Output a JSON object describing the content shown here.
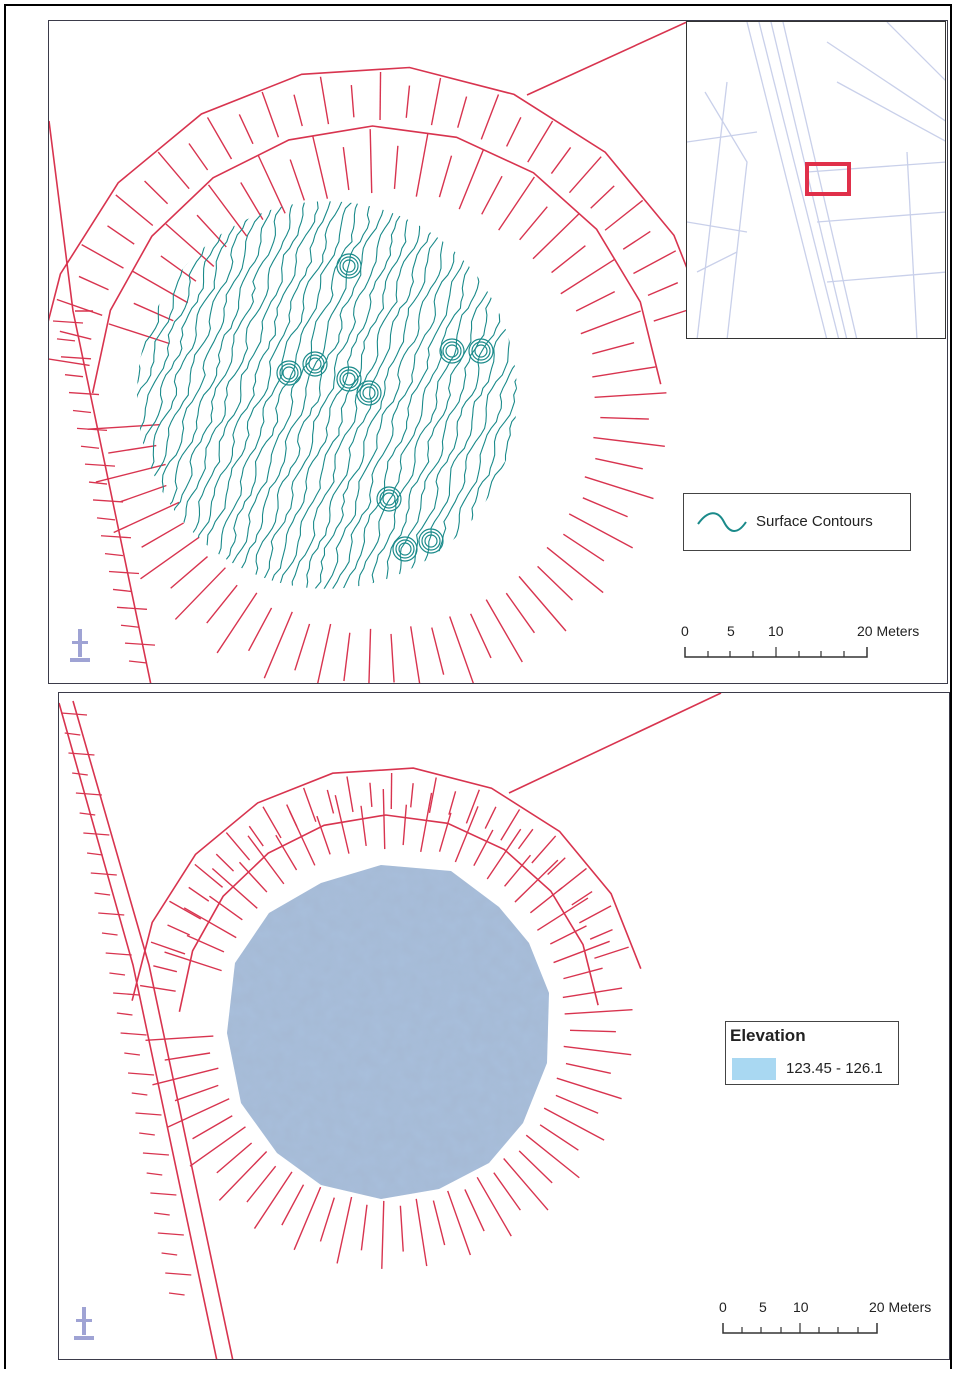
{
  "top_map": {
    "legend": {
      "label": "Surface Contours",
      "color": "#1a8a8a"
    },
    "scale": {
      "ticks": [
        "0",
        "5",
        "10",
        "20 Meters"
      ]
    }
  },
  "bottom_map": {
    "legend": {
      "title": "Elevation",
      "range": "123.45 - 126.1",
      "swatch_color": "#a9d8f2"
    },
    "scale": {
      "ticks": [
        "0",
        "5",
        "10",
        "20 Meters"
      ]
    }
  },
  "colors": {
    "earthwork": "#d8344f",
    "contour": "#1a8a8a",
    "surface": "#a8bfdc",
    "road": "#c9d0ea",
    "locator": "#e0304a"
  },
  "icons": {
    "north": "north-arrow-icon"
  }
}
